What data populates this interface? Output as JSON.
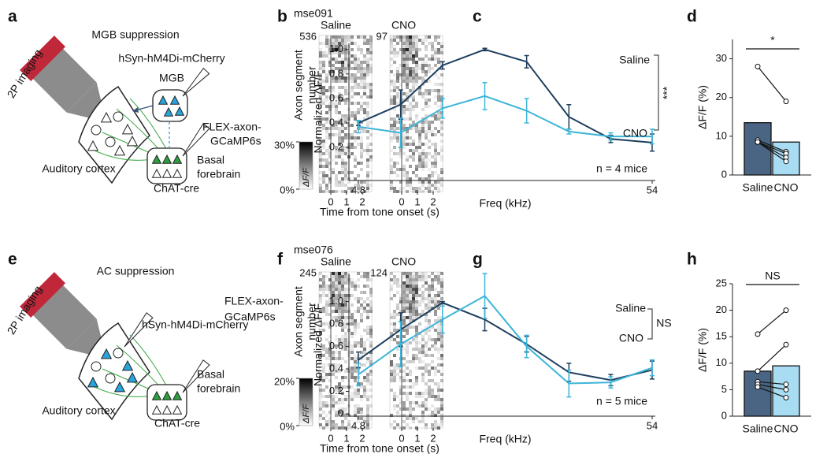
{
  "panel_labels": [
    "a",
    "b",
    "c",
    "d",
    "e",
    "f",
    "g",
    "h"
  ],
  "diagrams": [
    {
      "title": "MGB suppression",
      "imaging": "2P imaging",
      "virus": "hSyn-hM4Di-mCherry",
      "source": "MGB",
      "axon": [
        "FLEX-axon-",
        "GCaMP6s"
      ],
      "target": [
        "Basal",
        "forebrain"
      ],
      "cortex": "Auditory cortex",
      "mouse": "ChAT-cre"
    },
    {
      "title": "AC suppression",
      "imaging": "2P imaging",
      "virus": "hSyn-hM4Di-mCherry",
      "axon": [
        "FLEX-axon-",
        "GCaMP6s"
      ],
      "target": [
        "Basal",
        "forebrain"
      ],
      "cortex": "Auditory cortex",
      "mouse": "ChAT-cre"
    }
  ],
  "rasters": [
    {
      "title": "mse091",
      "conditions": [
        {
          "name": "Saline",
          "rows": 536
        },
        {
          "name": "CNO",
          "rows": 97
        }
      ],
      "ylabel": [
        "Axon segment",
        "number"
      ],
      "colorbar_ticks": [
        {
          "value": 30,
          "label": "30%"
        },
        {
          "value": 0,
          "label": "0%"
        }
      ],
      "colorbar_label": "ΔF/F",
      "xlim": [
        -0.75,
        2.6
      ],
      "xticks": [
        0,
        1,
        2
      ],
      "xlabel": "Time from tone onset (s)"
    },
    {
      "title": "mse076",
      "conditions": [
        {
          "name": "Saline",
          "rows": 245
        },
        {
          "name": "CNO",
          "rows": 124
        }
      ],
      "ylabel": [
        "Axon segment",
        "number"
      ],
      "colorbar_ticks": [
        {
          "value": 20,
          "label": "20%"
        },
        {
          "value": 0,
          "label": "0%"
        }
      ],
      "colorbar_label": "ΔF/F",
      "xlim": [
        -0.75,
        2.6
      ],
      "xticks": [
        0,
        1,
        2
      ],
      "xlabel": "Time from tone onset (s)"
    }
  ],
  "chart_data": [
    {
      "type": "line",
      "log_x": true,
      "xlabel": "Freq (kHz)",
      "ylabel": "Normalized ΔF/F",
      "x": [
        4.8,
        6.8,
        9.6,
        13.6,
        19.2,
        27.2,
        38.4,
        54
      ],
      "xlim": [
        4.8,
        54
      ],
      "xticks": [
        4.8,
        54
      ],
      "ylim": [
        -0.05,
        1.05
      ],
      "yticks": [
        0.2,
        0.4,
        0.6,
        0.8,
        {
          "value": 1,
          "label": "1.0"
        }
      ],
      "series": [
        {
          "name": "Saline",
          "color": "#1e3f5e",
          "values": [
            0.4,
            0.55,
            0.87,
            1.0,
            0.9,
            0.45,
            0.27,
            0.24
          ],
          "errors": [
            0.02,
            0.12,
            0.03,
            0.01,
            0.05,
            0.1,
            0.03,
            0.07
          ]
        },
        {
          "name": "CNO",
          "color": "#3db5d9",
          "values": [
            0.37,
            0.32,
            0.52,
            0.62,
            0.5,
            0.33,
            0.29,
            0.29
          ],
          "errors": [
            0.05,
            0.12,
            0.08,
            0.11,
            0.1,
            0.02,
            0.03,
            0.06
          ]
        }
      ],
      "stat": "***",
      "note": "n = 4 mice"
    },
    {
      "type": "bar",
      "ylabel": "ΔF/F (%)",
      "categories": [
        "Saline",
        "CNO"
      ],
      "values": [
        13.5,
        8.5
      ],
      "colors": [
        "#4a6584",
        "#a8dcf2"
      ],
      "label_colors": [
        "#2f4e6e",
        "#3ab0d9"
      ],
      "paired": [
        [
          28,
          19
        ],
        [
          9,
          6
        ],
        [
          8.5,
          5.5
        ],
        [
          8.5,
          4.5
        ],
        [
          8.5,
          3.5
        ]
      ],
      "ylim": [
        0,
        35
      ],
      "yticks": [
        0,
        10,
        20,
        30
      ],
      "stat": "*"
    },
    {
      "type": "line",
      "log_x": true,
      "xlabel": "Freq (kHz)",
      "ylabel": "Normalized ΔF/F",
      "x": [
        4.8,
        6.8,
        9.6,
        13.6,
        19.2,
        27.2,
        38.4,
        54
      ],
      "xlim": [
        4.8,
        54
      ],
      "xticks": [
        4.8,
        54
      ],
      "ylim": [
        0,
        1.25
      ],
      "yticks": [
        0,
        0.2,
        0.4,
        0.6,
        0.8,
        {
          "value": 1,
          "label": "1.0"
        }
      ],
      "series": [
        {
          "name": "Saline",
          "color": "#1e3f5e",
          "values": [
            0.48,
            0.75,
            0.99,
            0.84,
            0.62,
            0.37,
            0.3,
            0.39
          ],
          "errors": [
            0.07,
            0.15,
            0.01,
            0.1,
            0.07,
            0.08,
            0.05,
            0.08
          ]
        },
        {
          "name": "CNO",
          "color": "#3db5d9",
          "values": [
            0.35,
            0.62,
            0.84,
            1.05,
            0.6,
            0.27,
            0.28,
            0.41
          ],
          "errors": [
            0.1,
            0.2,
            0.12,
            0.2,
            0.1,
            0.12,
            0.05,
            0.07
          ]
        }
      ],
      "stat": "NS",
      "note": "n = 5 mice"
    },
    {
      "type": "bar",
      "ylabel": "ΔF/F (%)",
      "categories": [
        "Saline",
        "CNO"
      ],
      "values": [
        8.5,
        9.5
      ],
      "colors": [
        "#4a6584",
        "#a8dcf2"
      ],
      "label_colors": [
        "#2f4e6e",
        "#3ab0d9"
      ],
      "paired": [
        [
          15.5,
          20
        ],
        [
          8.5,
          13.5
        ],
        [
          6.5,
          6
        ],
        [
          6,
          5
        ],
        [
          5.5,
          3.5
        ]
      ],
      "ylim": [
        0,
        25
      ],
      "yticks": [
        0,
        5,
        10,
        15,
        20,
        25
      ],
      "stat": "NS"
    }
  ]
}
